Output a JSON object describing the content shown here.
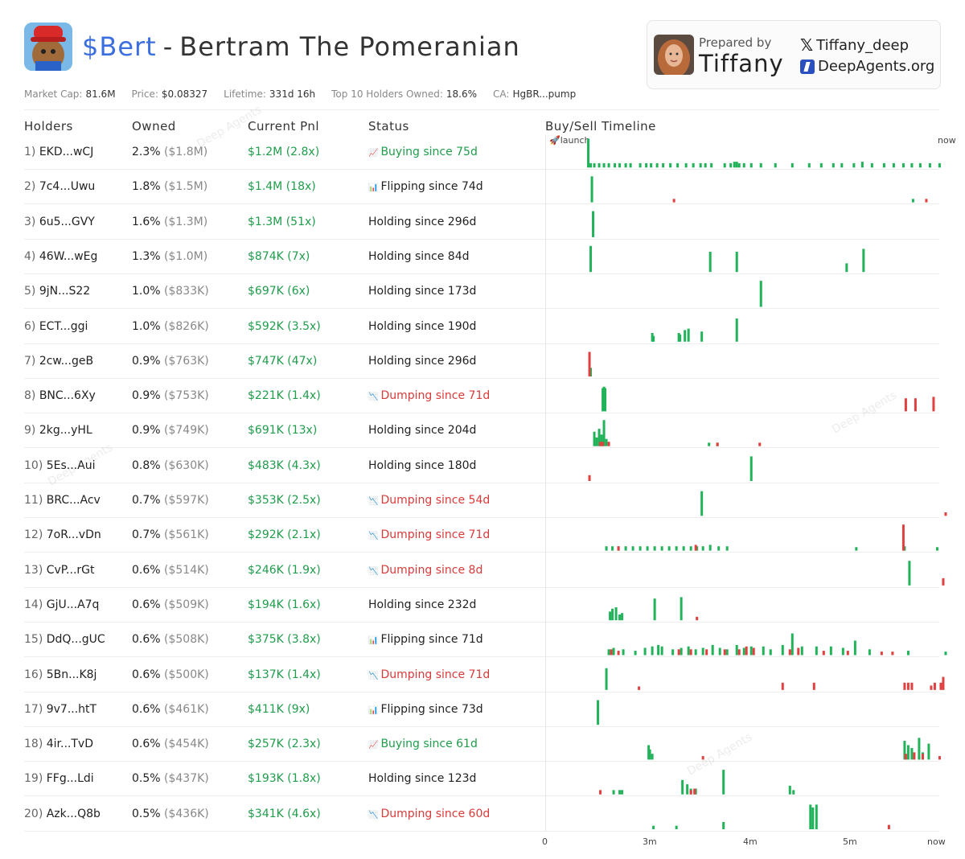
{
  "token": {
    "ticker": "$Bert",
    "separator": "-",
    "name": "Bertram The Pomeranian"
  },
  "prepared_by": {
    "label": "Prepared by",
    "name": "Tiffany",
    "x_handle": "Tiffany_deep",
    "site": "DeepAgents.org"
  },
  "stats": [
    {
      "label": "Market Cap:",
      "value": "81.6M"
    },
    {
      "label": "Price:",
      "value": "$0.08327"
    },
    {
      "label": "Lifetime:",
      "value": "331d 16h"
    },
    {
      "label": "Top 10 Holders Owned:",
      "value": "18.6%"
    },
    {
      "label": "CA:",
      "value": "HgBR...pump"
    }
  ],
  "columns": {
    "holders": "Holders",
    "owned": "Owned",
    "pnl": "Current Pnl",
    "status": "Status",
    "timeline": "Buy/Sell Timeline"
  },
  "watermark": "Deep Agents",
  "colors": {
    "buy": "#22b35a",
    "sell": "#e04040",
    "accent": "#3b6fe0"
  },
  "chart_data": {
    "type": "bar",
    "title": "Buy/Sell Timeline",
    "x_start_label": "launch",
    "x_end_label": "now",
    "x_ticks": [
      "0",
      "3m",
      "4m",
      "5m",
      "now"
    ],
    "lifetime_days": 331.7,
    "rows": [
      {
        "idx": "1)",
        "address": "EKD...wCJ",
        "owned_pct": "2.3%",
        "owned_usd": "($1.8M)",
        "pnl": "$1.2M (2.8x)",
        "status": "Buying since 75d",
        "status_type": "buy",
        "buys": [
          [
            35,
            1
          ],
          [
            37,
            0.15
          ],
          [
            40,
            0.15
          ],
          [
            44,
            0.15
          ],
          [
            48,
            0.15
          ],
          [
            52,
            0.15
          ],
          [
            57,
            0.15
          ],
          [
            61,
            0.15
          ],
          [
            66,
            0.15
          ],
          [
            70,
            0.15
          ],
          [
            78,
            0.15
          ],
          [
            83,
            0.15
          ],
          [
            87,
            0.15
          ],
          [
            92,
            0.15
          ],
          [
            97,
            0.15
          ],
          [
            103,
            0.15
          ],
          [
            109,
            0.15
          ],
          [
            116,
            0.15
          ],
          [
            122,
            0.15
          ],
          [
            128,
            0.15
          ],
          [
            132,
            0.15
          ],
          [
            137,
            0.15
          ],
          [
            148,
            0.15
          ],
          [
            153,
            0.15
          ],
          [
            156,
            0.2
          ],
          [
            158,
            0.2
          ],
          [
            160,
            0.15
          ],
          [
            164,
            0.15
          ],
          [
            170,
            0.15
          ],
          [
            178,
            0.15
          ],
          [
            190,
            0.15
          ],
          [
            204,
            0.15
          ],
          [
            218,
            0.15
          ],
          [
            228,
            0.15
          ],
          [
            238,
            0.15
          ],
          [
            245,
            0.15
          ],
          [
            255,
            0.15
          ],
          [
            262,
            0.2
          ],
          [
            270,
            0.15
          ],
          [
            280,
            0.15
          ],
          [
            288,
            0.15
          ],
          [
            296,
            0.15
          ],
          [
            303,
            0.15
          ],
          [
            310,
            0.15
          ],
          [
            318,
            0.15
          ],
          [
            326,
            0.15
          ]
        ],
        "sells": []
      },
      {
        "idx": "2)",
        "address": "7c4...Uwu",
        "owned_pct": "1.8%",
        "owned_usd": "($1.5M)",
        "pnl": "$1.4M (18x)",
        "status": "Flipping since 74d",
        "status_type": "flip",
        "buys": [
          [
            38,
            0.9
          ],
          [
            304,
            0.12
          ]
        ],
        "sells": [
          [
            106,
            0.12
          ],
          [
            315,
            0.12
          ]
        ]
      },
      {
        "idx": "3)",
        "address": "6u5...GVY",
        "owned_pct": "1.6%",
        "owned_usd": "($1.3M)",
        "pnl": "$1.3M (51x)",
        "status": "Holding since 296d",
        "status_type": "hold",
        "buys": [
          [
            39,
            0.9
          ]
        ],
        "sells": []
      },
      {
        "idx": "4)",
        "address": "46W...wEg",
        "owned_pct": "1.3%",
        "owned_usd": "($1.0M)",
        "pnl": "$874K (7x)",
        "status": "Holding since 84d",
        "status_type": "hold",
        "buys": [
          [
            37,
            0.9
          ],
          [
            136,
            0.7
          ],
          [
            158,
            0.7
          ],
          [
            249,
            0.3
          ],
          [
            263,
            0.8
          ]
        ],
        "sells": []
      },
      {
        "idx": "5)",
        "address": "9jN...S22",
        "owned_pct": "1.0%",
        "owned_usd": "($833K)",
        "pnl": "$697K (6x)",
        "status": "Holding since 173d",
        "status_type": "hold",
        "buys": [
          [
            178,
            0.9
          ]
        ],
        "sells": []
      },
      {
        "idx": "6)",
        "address": "ECT...ggi",
        "owned_pct": "1.0%",
        "owned_usd": "($826K)",
        "pnl": "$592K (3.5x)",
        "status": "Holding since 190d",
        "status_type": "hold",
        "buys": [
          [
            88,
            0.3
          ],
          [
            89,
            0.2
          ],
          [
            110,
            0.3
          ],
          [
            111,
            0.25
          ],
          [
            115,
            0.4
          ],
          [
            118,
            0.45
          ],
          [
            129,
            0.35
          ],
          [
            158,
            0.8
          ]
        ],
        "sells": []
      },
      {
        "idx": "7)",
        "address": "2cw...geB",
        "owned_pct": "0.9%",
        "owned_usd": "($763K)",
        "pnl": "$747K (47x)",
        "status": "Holding since 296d",
        "status_type": "hold",
        "buys": [
          [
            37,
            0.3
          ]
        ],
        "sells": [
          [
            36,
            0.85
          ]
        ]
      },
      {
        "idx": "8)",
        "address": "BNC...6Xy",
        "owned_pct": "0.9%",
        "owned_usd": "($753K)",
        "pnl": "$221K (1.4x)",
        "status": "Dumping since 71d",
        "status_type": "dump",
        "buys": [
          [
            47,
            0.8
          ],
          [
            48,
            0.85
          ],
          [
            49,
            0.8
          ]
        ],
        "sells": [
          [
            298,
            0.45
          ],
          [
            306,
            0.45
          ],
          [
            321,
            0.5
          ]
        ]
      },
      {
        "idx": "9)",
        "address": "2kg...yHL",
        "owned_pct": "0.9%",
        "owned_usd": "($749K)",
        "pnl": "$691K (13x)",
        "status": "Holding since 204d",
        "status_type": "hold",
        "buys": [
          [
            40,
            0.5
          ],
          [
            42,
            0.3
          ],
          [
            44,
            0.6
          ],
          [
            46,
            0.4
          ],
          [
            48,
            0.9
          ],
          [
            50,
            0.25
          ],
          [
            135,
            0.12
          ],
          [
            142,
            0.12
          ]
        ],
        "sells": [
          [
            45,
            0.15
          ],
          [
            47,
            0.15
          ],
          [
            52,
            0.15
          ],
          [
            142,
            0.12
          ],
          [
            177,
            0.12
          ]
        ]
      },
      {
        "idx": "10)",
        "address": "5Es...Aui",
        "owned_pct": "0.8%",
        "owned_usd": "($630K)",
        "pnl": "$483K (4.3x)",
        "status": "Holding since 180d",
        "status_type": "hold",
        "buys": [
          [
            170,
            0.85
          ]
        ],
        "sells": [
          [
            36,
            0.2
          ]
        ]
      },
      {
        "idx": "11)",
        "address": "BRC...Acv",
        "owned_pct": "0.7%",
        "owned_usd": "($597K)",
        "pnl": "$353K (2.5x)",
        "status": "Dumping since 54d",
        "status_type": "dump",
        "buys": [
          [
            129,
            0.85
          ]
        ],
        "sells": [
          [
            331,
            0.12
          ]
        ]
      },
      {
        "idx": "12)",
        "address": "7oR...vDn",
        "owned_pct": "0.7%",
        "owned_usd": "($561K)",
        "pnl": "$292K (2.1x)",
        "status": "Dumping since 71d",
        "status_type": "dump",
        "buys": [
          [
            50,
            0.15
          ],
          [
            55,
            0.15
          ],
          [
            60,
            0.15
          ],
          [
            66,
            0.15
          ],
          [
            72,
            0.15
          ],
          [
            78,
            0.15
          ],
          [
            84,
            0.15
          ],
          [
            90,
            0.15
          ],
          [
            96,
            0.15
          ],
          [
            102,
            0.15
          ],
          [
            108,
            0.15
          ],
          [
            114,
            0.15
          ],
          [
            120,
            0.15
          ],
          [
            125,
            0.15
          ],
          [
            130,
            0.15
          ],
          [
            136,
            0.2
          ],
          [
            143,
            0.15
          ],
          [
            150,
            0.15
          ],
          [
            257,
            0.12
          ],
          [
            297,
            0.15
          ],
          [
            324,
            0.12
          ]
        ],
        "sells": [
          [
            60,
            0.15
          ],
          [
            124,
            0.2
          ],
          [
            296,
            0.9
          ]
        ]
      },
      {
        "idx": "13)",
        "address": "CvP...rGt",
        "owned_pct": "0.6%",
        "owned_usd": "($514K)",
        "pnl": "$246K (1.9x)",
        "status": "Dumping since 8d",
        "status_type": "dump",
        "buys": [
          [
            301,
            0.85
          ]
        ],
        "sells": [
          [
            329,
            0.25
          ]
        ]
      },
      {
        "idx": "14)",
        "address": "GjU...A7q",
        "owned_pct": "0.6%",
        "owned_usd": "($509K)",
        "pnl": "$194K (1.6x)",
        "status": "Holding since 232d",
        "status_type": "hold",
        "buys": [
          [
            53,
            0.3
          ],
          [
            55,
            0.4
          ],
          [
            58,
            0.45
          ],
          [
            61,
            0.2
          ],
          [
            63,
            0.25
          ],
          [
            90,
            0.75
          ],
          [
            112,
            0.8
          ]
        ],
        "sells": [
          [
            125,
            0.12
          ]
        ]
      },
      {
        "idx": "15)",
        "address": "DdQ...gUC",
        "owned_pct": "0.6%",
        "owned_usd": "($508K)",
        "pnl": "$375K (3.8x)",
        "status": "Flipping since 71d",
        "status_type": "flip",
        "buys": [
          [
            52,
            0.2
          ],
          [
            56,
            0.25
          ],
          [
            64,
            0.2
          ],
          [
            74,
            0.15
          ],
          [
            82,
            0.25
          ],
          [
            88,
            0.3
          ],
          [
            93,
            0.35
          ],
          [
            96,
            0.3
          ],
          [
            105,
            0.2
          ],
          [
            112,
            0.25
          ],
          [
            118,
            0.3
          ],
          [
            124,
            0.2
          ],
          [
            130,
            0.25
          ],
          [
            138,
            0.35
          ],
          [
            144,
            0.25
          ],
          [
            150,
            0.2
          ],
          [
            158,
            0.35
          ],
          [
            164,
            0.25
          ],
          [
            170,
            0.3
          ],
          [
            180,
            0.3
          ],
          [
            186,
            0.2
          ],
          [
            196,
            0.35
          ],
          [
            204,
            0.75
          ],
          [
            212,
            0.3
          ],
          [
            224,
            0.3
          ],
          [
            236,
            0.3
          ],
          [
            246,
            0.25
          ],
          [
            256,
            0.5
          ],
          [
            268,
            0.2
          ],
          [
            300,
            0.15
          ],
          [
            331,
            0.12
          ]
        ],
        "sells": [
          [
            54,
            0.2
          ],
          [
            60,
            0.15
          ],
          [
            110,
            0.2
          ],
          [
            120,
            0.2
          ],
          [
            133,
            0.2
          ],
          [
            148,
            0.2
          ],
          [
            160,
            0.2
          ],
          [
            166,
            0.3
          ],
          [
            172,
            0.25
          ],
          [
            202,
            0.2
          ],
          [
            209,
            0.25
          ],
          [
            230,
            0.15
          ],
          [
            250,
            0.15
          ],
          [
            278,
            0.12
          ],
          [
            287,
            0.12
          ]
        ]
      },
      {
        "idx": "16)",
        "address": "5Bn...K8j",
        "owned_pct": "0.6%",
        "owned_usd": "($500K)",
        "pnl": "$137K (1.4x)",
        "status": "Dumping since 71d",
        "status_type": "dump",
        "buys": [
          [
            50,
            0.75
          ]
        ],
        "sells": [
          [
            77,
            0.12
          ],
          [
            196,
            0.25
          ],
          [
            222,
            0.25
          ],
          [
            297,
            0.25
          ],
          [
            300,
            0.25
          ],
          [
            303,
            0.25
          ],
          [
            319,
            0.15
          ],
          [
            322,
            0.25
          ],
          [
            327,
            0.25
          ],
          [
            329,
            0.45
          ]
        ]
      },
      {
        "idx": "17)",
        "address": "9v7...htT",
        "owned_pct": "0.6%",
        "owned_usd": "($461K)",
        "pnl": "$411K (9x)",
        "status": "Flipping since 73d",
        "status_type": "flip",
        "buys": [
          [
            43,
            0.85
          ]
        ],
        "sells": []
      },
      {
        "idx": "18)",
        "address": "4ir...TvD",
        "owned_pct": "0.6%",
        "owned_usd": "($454K)",
        "pnl": "$257K (2.3x)",
        "status": "Buying since 61d",
        "status_type": "buy",
        "buys": [
          [
            85,
            0.5
          ],
          [
            86,
            0.35
          ],
          [
            88,
            0.2
          ],
          [
            297,
            0.65
          ],
          [
            300,
            0.5
          ],
          [
            303,
            0.4
          ],
          [
            309,
            0.75
          ],
          [
            312,
            0.25
          ],
          [
            317,
            0.55
          ],
          [
            309,
            0.12
          ]
        ],
        "sells": [
          [
            130,
            0.12
          ],
          [
            298,
            0.2
          ],
          [
            305,
            0.25
          ],
          [
            312,
            0.2
          ],
          [
            326,
            0.12
          ]
        ]
      },
      {
        "idx": "19)",
        "address": "FFg...Ldi",
        "owned_pct": "0.5%",
        "owned_usd": "($437K)",
        "pnl": "$193K (1.8x)",
        "status": "Holding since 123d",
        "status_type": "hold",
        "buys": [
          [
            56,
            0.15
          ],
          [
            61,
            0.15
          ],
          [
            63,
            0.15
          ],
          [
            113,
            0.5
          ],
          [
            117,
            0.35
          ],
          [
            120,
            0.2
          ],
          [
            124,
            0.2
          ],
          [
            147,
            0.85
          ],
          [
            202,
            0.3
          ],
          [
            205,
            0.15
          ]
        ],
        "sells": [
          [
            45,
            0.15
          ],
          [
            120,
            0.15
          ],
          [
            123,
            0.2
          ]
        ]
      },
      {
        "idx": "20)",
        "address": "Azk...Q8b",
        "owned_pct": "0.5%",
        "owned_usd": "($436K)",
        "pnl": "$341K (4.6x)",
        "status": "Dumping since 60d",
        "status_type": "dump",
        "buys": [
          [
            89,
            0.12
          ],
          [
            108,
            0.12
          ],
          [
            147,
            0.25
          ],
          [
            219,
            0.85
          ],
          [
            221,
            0.75
          ],
          [
            224,
            0.85
          ]
        ],
        "sells": [
          [
            284,
            0.15
          ]
        ]
      }
    ]
  }
}
